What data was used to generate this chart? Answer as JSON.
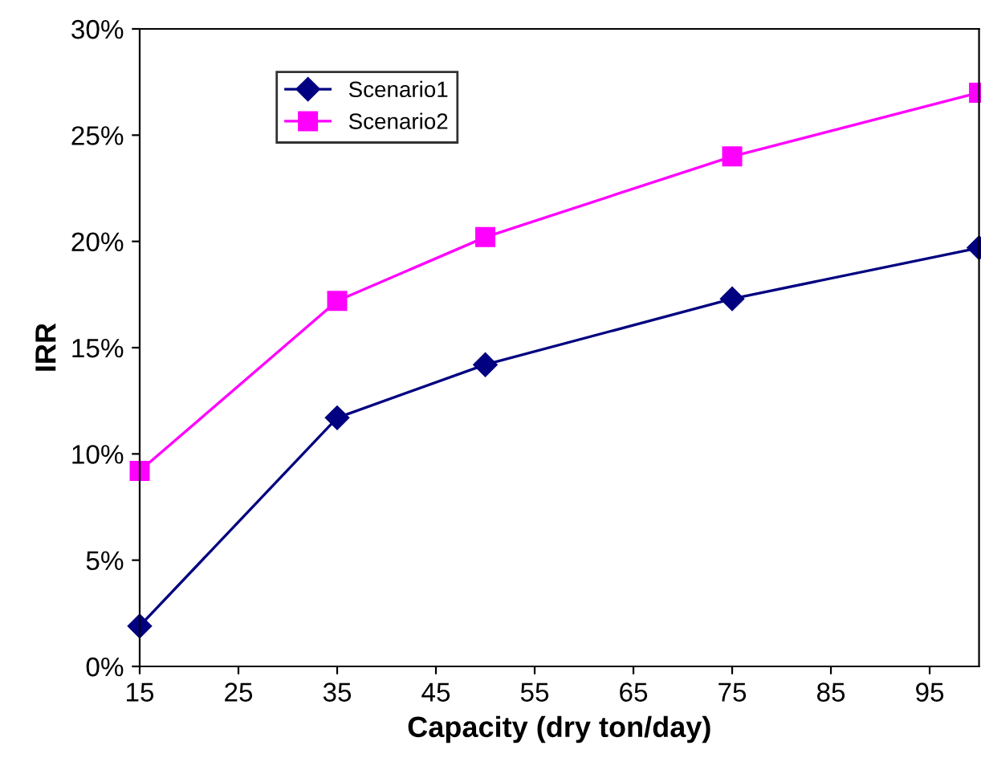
{
  "chart_data": {
    "type": "line",
    "xlabel": "Capacity (dry ton/day)",
    "ylabel": "IRR",
    "x": [
      15,
      35,
      50,
      75,
      100
    ],
    "series": [
      {
        "name": "Scenario1",
        "color": "#000080",
        "marker": "diamond",
        "values": [
          1.9,
          11.7,
          14.2,
          17.3,
          19.7
        ]
      },
      {
        "name": "Scenario2",
        "color": "#ff00ff",
        "marker": "square",
        "values": [
          9.2,
          17.2,
          20.2,
          24.0,
          27.0
        ]
      }
    ],
    "xlim": [
      15,
      100
    ],
    "xticks": [
      15,
      25,
      35,
      45,
      55,
      65,
      75,
      85,
      95
    ],
    "ylim": [
      0,
      30
    ],
    "yticks": [
      {
        "value": 0,
        "label": "0%"
      },
      {
        "value": 5,
        "label": "5%"
      },
      {
        "value": 10,
        "label": "10%"
      },
      {
        "value": 15,
        "label": "15%"
      },
      {
        "value": 20,
        "label": "20%"
      },
      {
        "value": 25,
        "label": "25%"
      },
      {
        "value": 30,
        "label": "30%"
      }
    ],
    "grid": false,
    "legend": "top left",
    "line_style": "solid"
  }
}
